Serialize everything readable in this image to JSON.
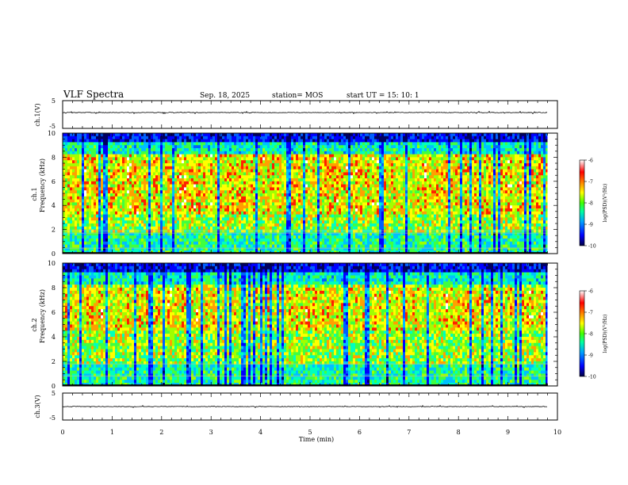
{
  "header": {
    "title": "VLF Spectra",
    "date": "Sep. 18, 2025",
    "station": "station= MOS",
    "start": "start UT =  15: 10: 1"
  },
  "chart_data": {
    "type": "heatmap",
    "xlabel": "Time (min)",
    "x_ticks": [
      "0",
      "1",
      "2",
      "3",
      "4",
      "5",
      "6",
      "7",
      "8",
      "9",
      "10"
    ],
    "xlim": [
      0,
      10
    ],
    "data_end_min": 9.8,
    "waveform_top": {
      "ylabel": "ch.1(V)",
      "ylim": [
        -5,
        5
      ],
      "tick_top": "5",
      "tick_bottom": "-5"
    },
    "spectrogram_1": {
      "ylabel_line1": "ch.1",
      "ylabel_line2": "Frequency (kHz)",
      "ylim": [
        0,
        10
      ],
      "y_ticks": [
        "0",
        "2",
        "4",
        "6",
        "8",
        "10"
      ],
      "horizontal_lines_khz": [
        1.7,
        0.45,
        1.9
      ]
    },
    "spectrogram_2": {
      "ylabel_line1": "ch.2",
      "ylabel_line2": "Frequency (kHz)",
      "ylim": [
        0,
        10
      ],
      "y_ticks": [
        "0",
        "2",
        "4",
        "6",
        "8",
        "10"
      ],
      "horizontal_lines_khz": [
        1.8,
        0.8
      ]
    },
    "waveform_bottom": {
      "ylabel": "ch.3(V)",
      "ylim": [
        -5,
        5
      ],
      "tick_top": "5",
      "tick_bottom": "-5"
    },
    "colorbar": {
      "label": "log(PSD)(V²/Hz)",
      "range": [
        -10,
        -6
      ],
      "ticks": [
        "-6",
        "-7",
        "-8",
        "-9",
        "-10"
      ],
      "colormap": [
        "#000080",
        "#0000ff",
        "#00c0ff",
        "#00ff80",
        "#80ff00",
        "#ffff00",
        "#ff8000",
        "#ff0000",
        "#ffffff"
      ]
    }
  }
}
